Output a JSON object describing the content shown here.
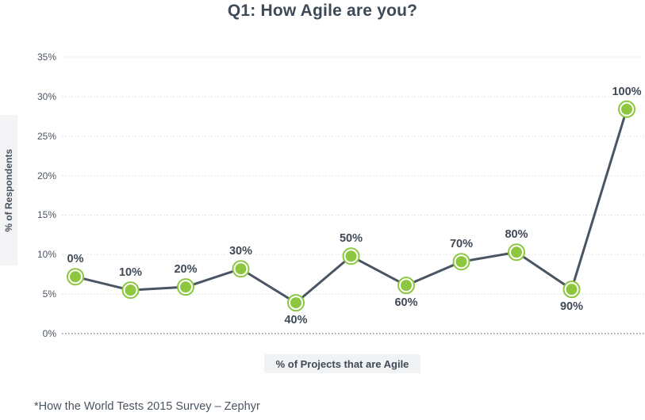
{
  "footer": "*How the World Tests 2015 Survey – Zephyr",
  "chart_data": {
    "type": "line",
    "title": "Q1: How Agile are you?",
    "xlabel": "% of Projects that are Agile",
    "ylabel": "% of Respondents",
    "categories": [
      "0%",
      "10%",
      "20%",
      "30%",
      "40%",
      "50%",
      "60%",
      "70%",
      "80%",
      "90%",
      "100%"
    ],
    "values": [
      7.2,
      5.5,
      5.9,
      8.2,
      3.9,
      9.8,
      6.1,
      9.1,
      10.3,
      5.6,
      28.4
    ],
    "label_position": [
      "above",
      "above",
      "above",
      "above",
      "below",
      "above",
      "below",
      "above",
      "above",
      "below",
      "above"
    ],
    "yticks": [
      0,
      5,
      10,
      15,
      20,
      25,
      30,
      35
    ],
    "ytick_labels": [
      "0%",
      "5%",
      "10%",
      "15%",
      "20%",
      "25%",
      "30%",
      "35%"
    ],
    "ylim": [
      0,
      35
    ],
    "grid": "horizontal-dotted",
    "legend": "none",
    "colors": {
      "line": "#4a5563",
      "marker_fill": "#8dc63f",
      "marker_ring": "#8dc63f",
      "data_label": "#3f4a56",
      "gridline": "#d8dbdd",
      "baseline": "#4a5563",
      "title": "#3e4a57"
    }
  }
}
